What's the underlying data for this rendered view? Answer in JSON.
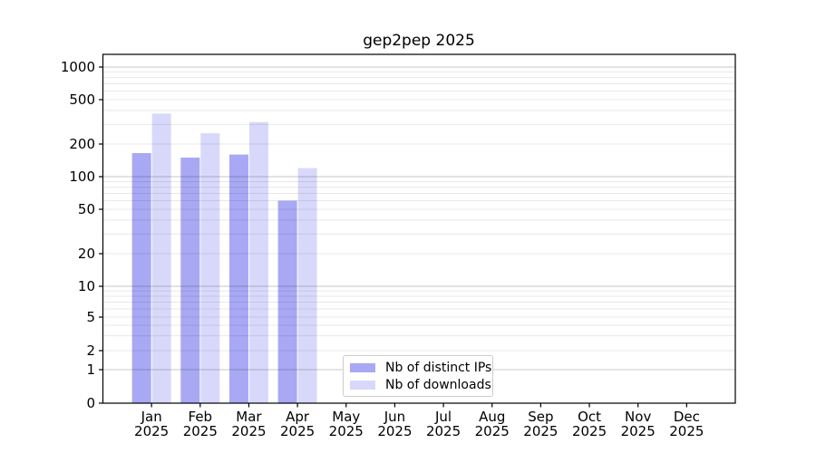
{
  "chart_data": {
    "type": "bar",
    "title": "gep2pep 2025",
    "categories": [
      "Jan",
      "Feb",
      "Mar",
      "Apr",
      "May",
      "Jun",
      "Jul",
      "Aug",
      "Sep",
      "Oct",
      "Nov",
      "Dec"
    ],
    "category_year": "2025",
    "series": [
      {
        "name": "Nb of distinct IPs",
        "color": "#a8a8f4",
        "values": [
          165,
          150,
          160,
          60,
          null,
          null,
          null,
          null,
          null,
          null,
          null,
          null
        ]
      },
      {
        "name": "Nb of downloads",
        "color": "#d8d9fa",
        "values": [
          375,
          250,
          315,
          120,
          null,
          null,
          null,
          null,
          null,
          null,
          null,
          null
        ]
      }
    ],
    "yscale": "symlog",
    "ytick_labels": [
      "0",
      "1",
      "2",
      "5",
      "10",
      "20",
      "50",
      "100",
      "200",
      "500",
      "1000"
    ],
    "ytick_values": [
      0,
      1,
      2,
      5,
      10,
      20,
      50,
      100,
      200,
      500,
      1000
    ],
    "ylim": [
      0,
      1000
    ],
    "grid": true,
    "legend_position": "inside-bottom-center",
    "colors": {
      "grid_minor": "rgba(0,0,0,0.09)",
      "grid_major": "rgba(0,0,0,0.22)",
      "spine": "#000000",
      "background": "#ffffff"
    }
  }
}
